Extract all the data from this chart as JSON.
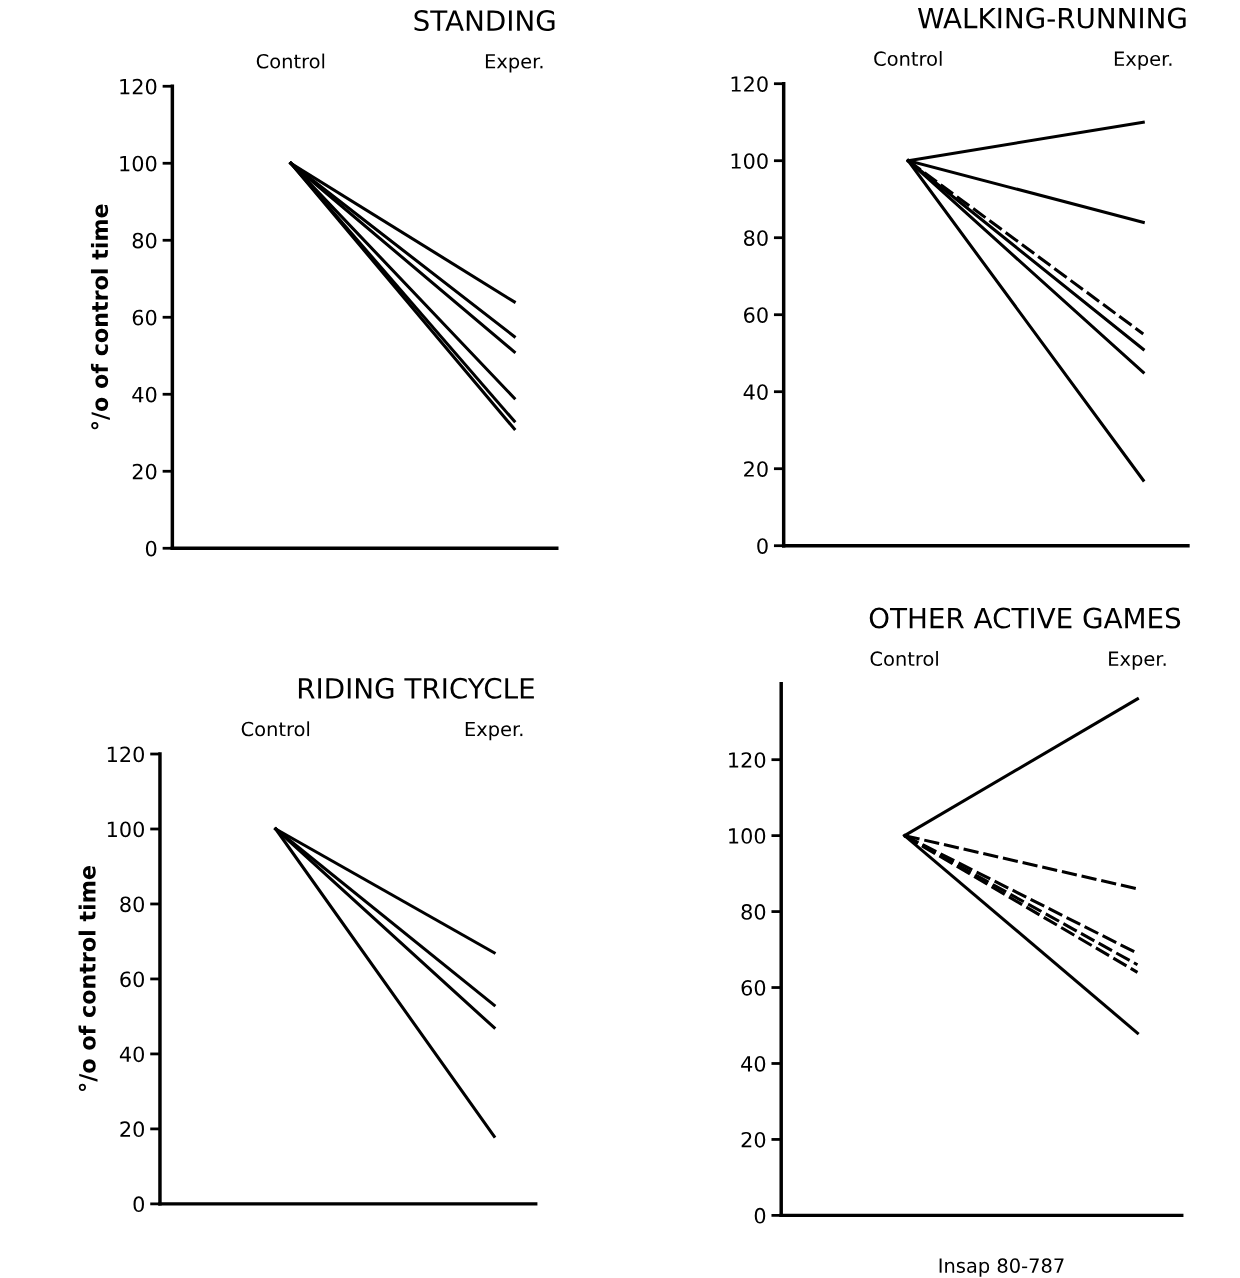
{
  "chart_data": [
    {
      "type": "line",
      "title": "STANDING",
      "ylabel": "°/o of control time",
      "categories": [
        "Control",
        "Exper."
      ],
      "ylim": [
        0,
        120
      ],
      "yticks": [
        0,
        20,
        40,
        60,
        80,
        100,
        120
      ],
      "series": [
        {
          "color": "#000000",
          "values": [
            100,
            64
          ]
        },
        {
          "color": "#000000",
          "values": [
            100,
            55
          ]
        },
        {
          "color": "#000000",
          "values": [
            100,
            51
          ]
        },
        {
          "color": "#000000",
          "values": [
            100,
            39
          ]
        },
        {
          "color": "#000000",
          "values": [
            100,
            33
          ]
        },
        {
          "color": "#000000",
          "values": [
            100,
            31
          ]
        }
      ]
    },
    {
      "type": "line",
      "title": "WALKING-RUNNING",
      "categories": [
        "Control",
        "Exper."
      ],
      "ylim": [
        0,
        120
      ],
      "yticks": [
        0,
        20,
        40,
        60,
        80,
        100,
        120
      ],
      "series": [
        {
          "color": "#000000",
          "values": [
            100,
            110
          ]
        },
        {
          "color": "#000000",
          "values": [
            100,
            84
          ]
        },
        {
          "color": "#000000",
          "values": [
            100,
            55
          ],
          "line_style": "dashed"
        },
        {
          "color": "#000000",
          "values": [
            100,
            51
          ]
        },
        {
          "color": "#000000",
          "values": [
            100,
            45
          ]
        },
        {
          "color": "#000000",
          "values": [
            100,
            17
          ]
        }
      ]
    },
    {
      "type": "line",
      "title": "RIDING TRICYCLE",
      "ylabel": "°/o of control time",
      "categories": [
        "Control",
        "Exper."
      ],
      "ylim": [
        0,
        120
      ],
      "yticks": [
        0,
        20,
        40,
        60,
        80,
        100,
        120
      ],
      "series": [
        {
          "color": "#000000",
          "values": [
            100,
            67
          ]
        },
        {
          "color": "#000000",
          "values": [
            100,
            53
          ]
        },
        {
          "color": "#000000",
          "values": [
            100,
            47
          ]
        },
        {
          "color": "#000000",
          "values": [
            100,
            18
          ]
        }
      ]
    },
    {
      "type": "line",
      "title": "OTHER ACTIVE GAMES",
      "categories": [
        "Control",
        "Exper."
      ],
      "ylim": [
        0,
        140
      ],
      "yticks": [
        0,
        20,
        40,
        60,
        80,
        100,
        120
      ],
      "annotations": [
        "Insap 80-787"
      ],
      "series": [
        {
          "color": "#000000",
          "values": [
            100,
            136
          ]
        },
        {
          "color": "#000000",
          "values": [
            100,
            86
          ],
          "line_style": "dashed"
        },
        {
          "color": "#000000",
          "values": [
            100,
            69
          ],
          "line_style": "dashed"
        },
        {
          "color": "#000000",
          "values": [
            100,
            66
          ],
          "line_style": "dashed"
        },
        {
          "color": "#000000",
          "values": [
            100,
            64
          ],
          "line_style": "dashed"
        },
        {
          "color": "#000000",
          "values": [
            100,
            48
          ]
        }
      ]
    }
  ]
}
